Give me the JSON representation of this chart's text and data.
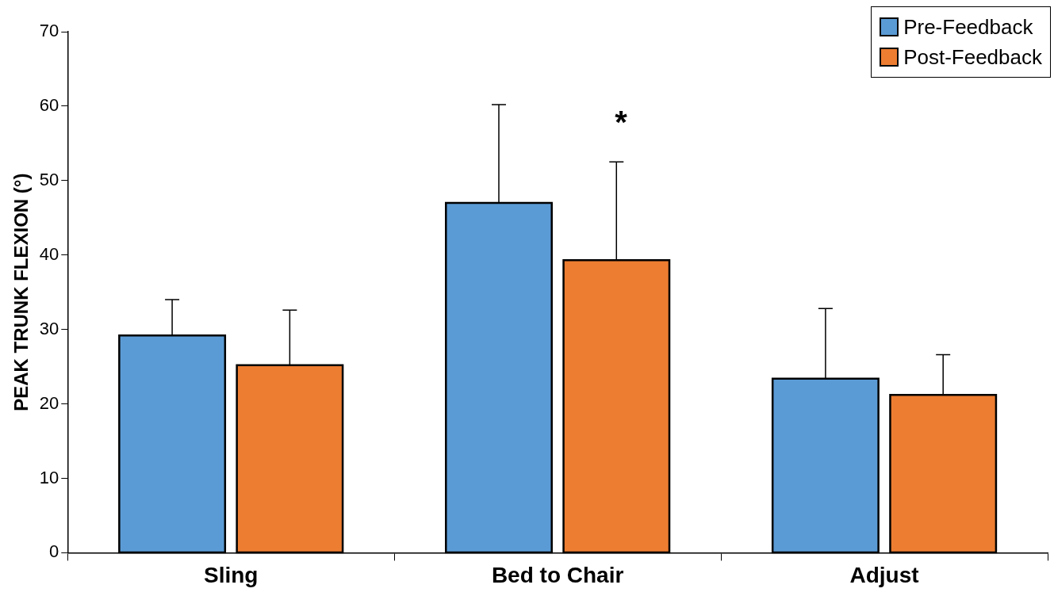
{
  "chart_data": {
    "type": "bar",
    "ylabel": "PEAK TRUNK FLEXION (°)",
    "categories": [
      "Sling",
      "Bed to Chair",
      "Adjust"
    ],
    "series": [
      {
        "name": "Pre-Feedback",
        "color": "#5b9bd5",
        "values": [
          29.2,
          47.0,
          23.4
        ],
        "errors": [
          [
            29.2,
            34.0
          ],
          [
            47.0,
            60.2
          ],
          [
            23.4,
            32.8
          ]
        ]
      },
      {
        "name": "Post-Feedback",
        "color": "#ed7d31",
        "values": [
          25.2,
          39.3,
          21.2
        ],
        "errors": [
          [
            25.2,
            32.6
          ],
          [
            39.3,
            52.5
          ],
          [
            21.2,
            26.6
          ]
        ]
      }
    ],
    "ylim": [
      0,
      70
    ],
    "yticks": [
      0,
      10,
      20,
      30,
      40,
      50,
      60,
      70
    ],
    "grid": false,
    "legend": "top right",
    "annotations": [
      "*"
    ]
  }
}
